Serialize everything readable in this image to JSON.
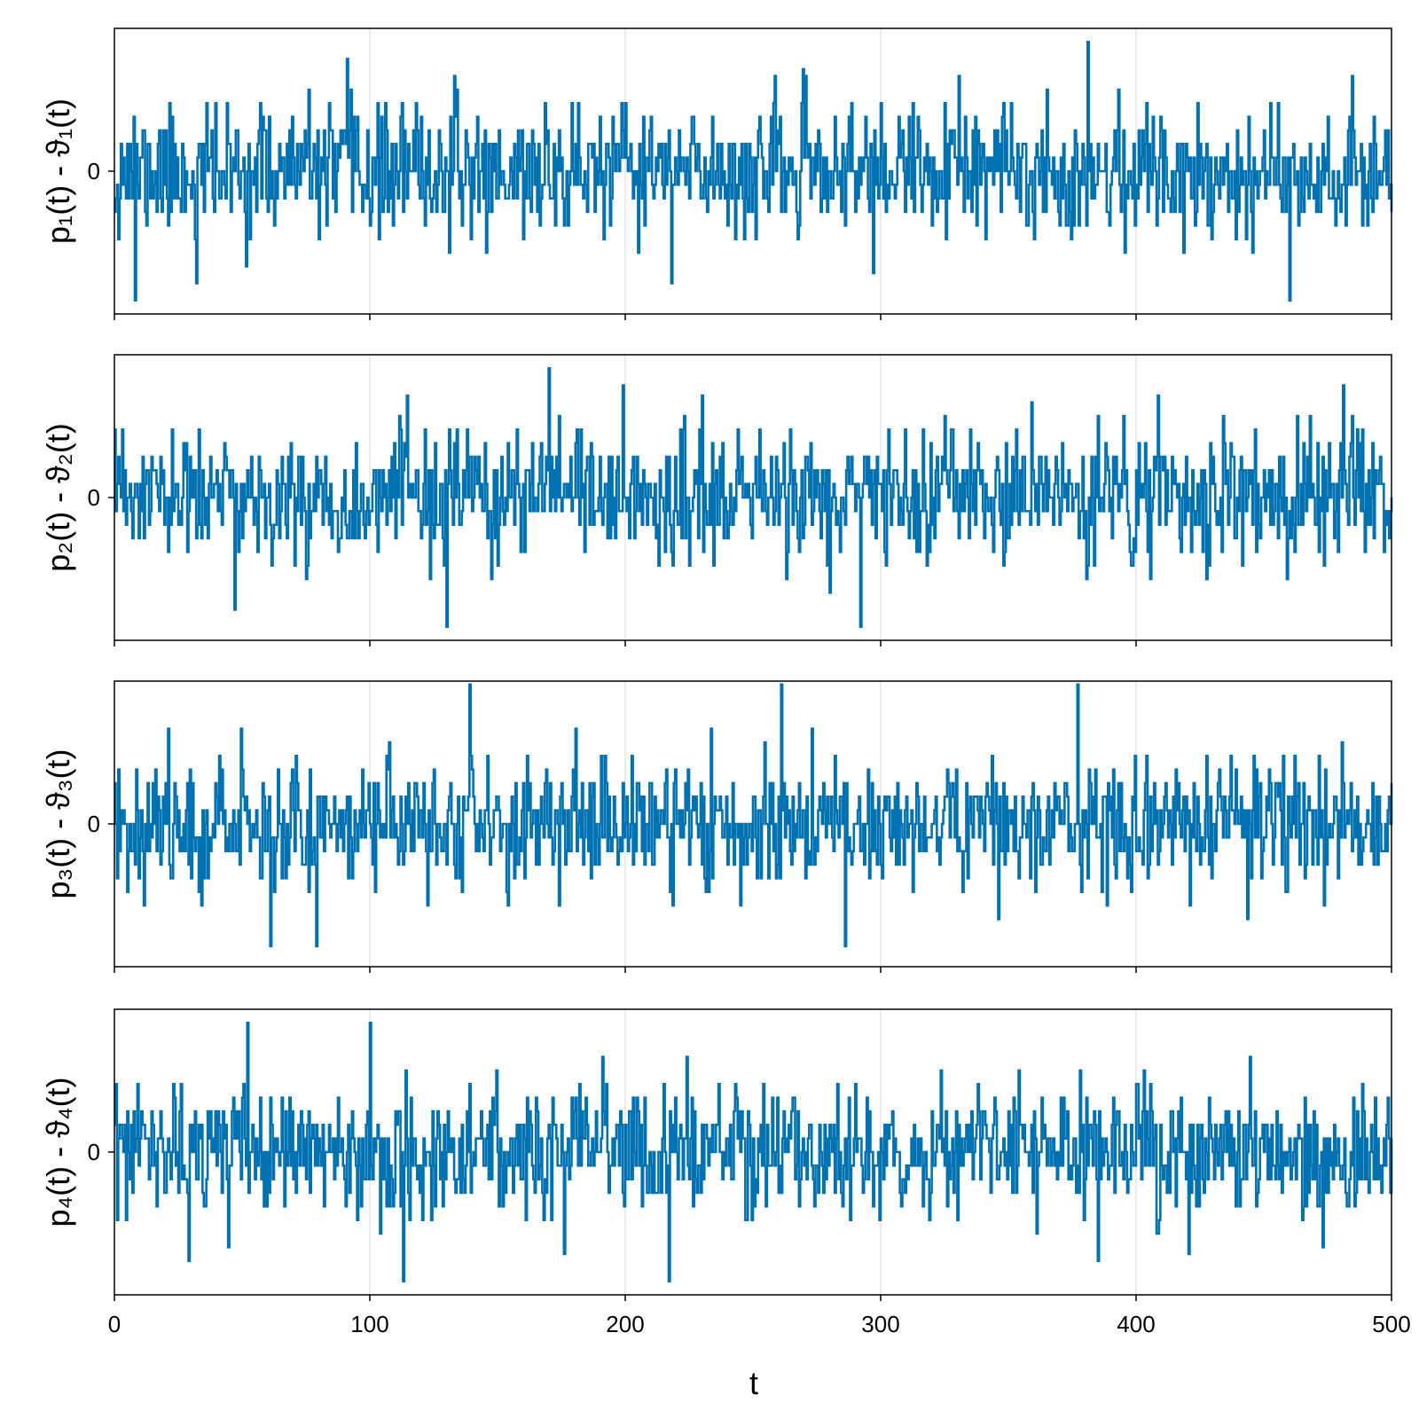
{
  "chart_data": [
    {
      "type": "line",
      "panel": 1,
      "ylabel": "p₁(t) - ϑ₁(t)",
      "xlabel": "",
      "xlim": [
        0,
        500
      ],
      "ylim": [
        -4.2,
        4.2
      ],
      "xticks": [
        0,
        100,
        200,
        300,
        400,
        500
      ],
      "yticks": [
        0
      ],
      "x_tick_labels_shown": false,
      "grid": true,
      "series": [
        {
          "color": "#0072b2",
          "x_step": 0.5,
          "seed": 11,
          "values_note": "noisy step signal around 0",
          "extremes": [
            {
              "t": 91,
              "v": 3.3
            },
            {
              "t": 381,
              "v": 3.8
            },
            {
              "t": 8,
              "v": -3.8
            },
            {
              "t": 460,
              "v": -3.8
            },
            {
              "t": 32,
              "v": -3.3
            },
            {
              "t": 218,
              "v": -3.3
            }
          ]
        }
      ]
    },
    {
      "type": "line",
      "panel": 2,
      "ylabel": "p₂(t) - ϑ₂(t)",
      "xlabel": "",
      "xlim": [
        0,
        500
      ],
      "ylim": [
        -4.2,
        4.2
      ],
      "xticks": [
        0,
        100,
        200,
        300,
        400,
        500
      ],
      "yticks": [
        0
      ],
      "x_tick_labels_shown": false,
      "grid": true,
      "series": [
        {
          "color": "#0072b2",
          "x_step": 0.5,
          "seed": 23,
          "extremes": [
            {
              "t": 170,
              "v": 3.8
            },
            {
              "t": 199,
              "v": 3.3
            },
            {
              "t": 481,
              "v": 3.3
            },
            {
              "t": 130,
              "v": -3.8
            },
            {
              "t": 292,
              "v": -3.8
            },
            {
              "t": 47,
              "v": -3.3
            }
          ]
        }
      ]
    },
    {
      "type": "line",
      "panel": 3,
      "ylabel": "p₃(t) - ϑ₃(t)",
      "xlabel": "",
      "xlim": [
        0,
        500
      ],
      "ylim": [
        -4.2,
        4.2
      ],
      "xticks": [
        0,
        100,
        200,
        300,
        400,
        500
      ],
      "yticks": [
        0
      ],
      "x_tick_labels_shown": false,
      "grid": true,
      "series": [
        {
          "color": "#0072b2",
          "x_step": 0.5,
          "seed": 37,
          "extremes": [
            {
              "t": 139,
              "v": 4.1
            },
            {
              "t": 261,
              "v": 4.1
            },
            {
              "t": 377,
              "v": 4.1
            },
            {
              "t": 61,
              "v": -3.6
            },
            {
              "t": 79,
              "v": -3.6
            },
            {
              "t": 286,
              "v": -3.6
            }
          ]
        }
      ]
    },
    {
      "type": "line",
      "panel": 4,
      "ylabel": "p₄(t) - ϑ₄(t)",
      "xlabel": "t",
      "xlim": [
        0,
        500
      ],
      "ylim": [
        -4.2,
        4.2
      ],
      "xticks": [
        0,
        100,
        200,
        300,
        400,
        500
      ],
      "xtick_labels": [
        "0",
        "100",
        "200",
        "300",
        "400",
        "500"
      ],
      "yticks": [
        0
      ],
      "x_tick_labels_shown": true,
      "grid": true,
      "series": [
        {
          "color": "#0072b2",
          "x_step": 0.5,
          "seed": 53,
          "extremes": [
            {
              "t": 52,
              "v": 3.8
            },
            {
              "t": 100,
              "v": 3.8
            },
            {
              "t": 113,
              "v": -3.8
            },
            {
              "t": 217,
              "v": -3.8
            },
            {
              "t": 29,
              "v": -3.2
            },
            {
              "t": 385,
              "v": -3.2
            }
          ]
        }
      ]
    }
  ]
}
